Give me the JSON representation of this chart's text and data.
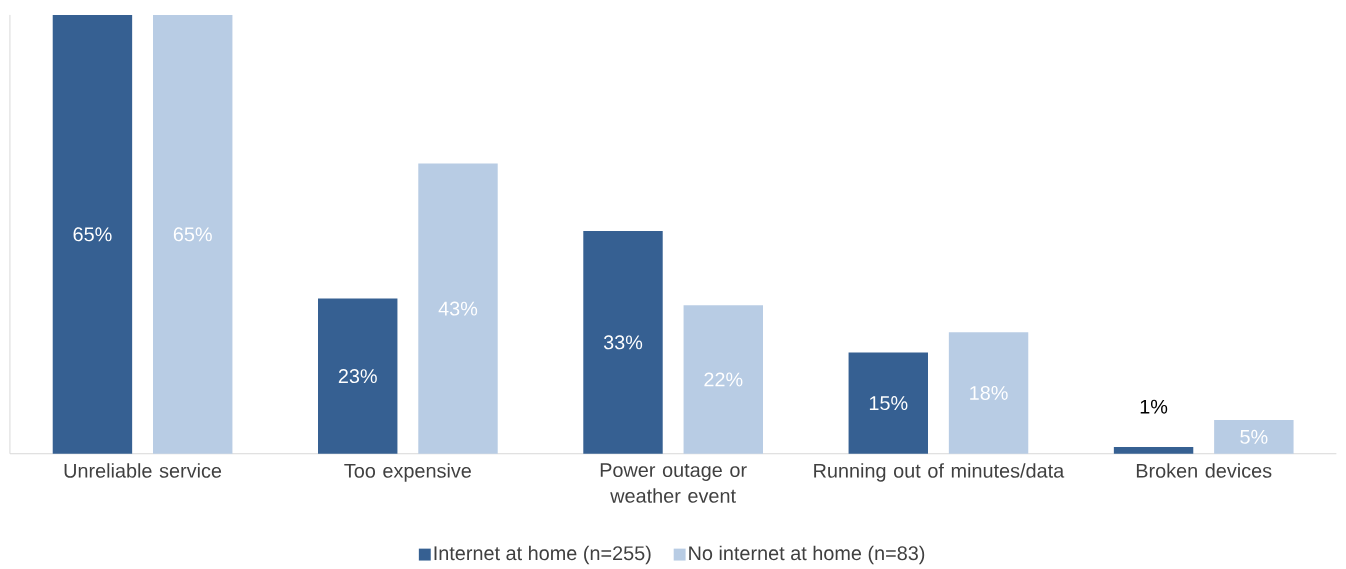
{
  "chart_data": {
    "type": "bar",
    "categories": [
      "Unreliable service",
      "Too expensive",
      "Power outage or weather event",
      "Running out of minutes/data",
      "Broken devices"
    ],
    "series": [
      {
        "name": "Internet at home (n=255)",
        "color": "#366092",
        "values": [
          65,
          23,
          33,
          15,
          1
        ],
        "value_labels": [
          "65%",
          "23%",
          "33%",
          "15%",
          "1%"
        ]
      },
      {
        "name": "No internet at home (n=83)",
        "color": "#b8cce4",
        "values": [
          65,
          43,
          22,
          18,
          5
        ],
        "value_labels": [
          "65%",
          "43%",
          "22%",
          "18%",
          "5%"
        ]
      }
    ],
    "ylim": [
      0,
      65
    ],
    "legend": "bottom"
  }
}
